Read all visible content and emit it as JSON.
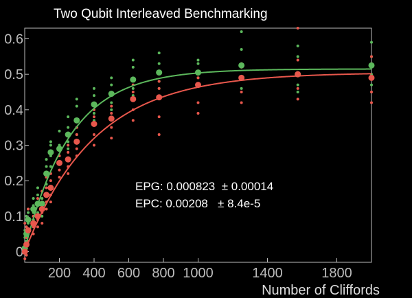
{
  "chart_data": {
    "type": "scatter",
    "title": "Two Qubit Interleaved Benchmarking",
    "xlabel": "Number of Cliffords",
    "ylabel": "",
    "xlim": [
      0,
      2000
    ],
    "ylim": [
      -0.03,
      0.63
    ],
    "x_ticks": [
      200,
      400,
      600,
      800,
      1000,
      1400,
      1800
    ],
    "x_tick_labels": [
      "200",
      "400",
      "600",
      "800",
      "1000",
      "1400",
      "1800"
    ],
    "y_ticks": [
      0,
      0.1,
      0.2,
      0.3,
      0.4,
      0.5,
      0.6
    ],
    "y_tick_labels": [
      "0",
      "0.1",
      "0.2",
      "0.3",
      "0.4",
      "0.5",
      "0.6"
    ],
    "grid": false,
    "annotations": [
      {
        "text": "EPG: 0.000823  ± 0.00014"
      },
      {
        "text": "EPC: 0.00208   ± 8.4e-5"
      }
    ],
    "series": [
      {
        "color": "#5cb85c",
        "x": [
          1,
          10,
          20,
          50,
          75,
          100,
          125,
          150,
          200,
          250,
          300,
          400,
          500,
          625,
          775,
          1000,
          1250,
          1575,
          2000
        ],
        "mean": [
          0.01,
          0.05,
          0.09,
          0.12,
          0.135,
          0.135,
          0.22,
          0.28,
          0.29,
          0.33,
          0.37,
          0.415,
          0.445,
          0.485,
          0.505,
          0.505,
          0.525,
          0.5,
          0.525
        ],
        "samples": [
          [
            0.02,
            0.0,
            0.04,
            0.06
          ],
          [
            0.03,
            0.07,
            0.1,
            0.04
          ],
          [
            0.06,
            0.12,
            0.08,
            0.11
          ],
          [
            0.09,
            0.15,
            0.11,
            0.13
          ],
          [
            0.11,
            0.18,
            0.13,
            0.16
          ],
          [
            0.1,
            0.17,
            0.15,
            0.12
          ],
          [
            0.19,
            0.24,
            0.21,
            0.26
          ],
          [
            0.24,
            0.31,
            0.27,
            0.3
          ],
          [
            0.25,
            0.34,
            0.3,
            0.27
          ],
          [
            0.29,
            0.38,
            0.35,
            0.31
          ],
          [
            0.33,
            0.43,
            0.41,
            0.35
          ],
          [
            0.37,
            0.46,
            0.44,
            0.39
          ],
          [
            0.4,
            0.49,
            0.47,
            0.42
          ],
          [
            0.44,
            0.54,
            0.52,
            0.46
          ],
          [
            0.46,
            0.56,
            0.53,
            0.48
          ],
          [
            0.47,
            0.54,
            0.53,
            0.49
          ],
          [
            0.46,
            0.62,
            0.57,
            0.49
          ],
          [
            0.45,
            0.58,
            0.55,
            0.47
          ],
          [
            0.47,
            0.59,
            0.55,
            0.5
          ]
        ],
        "fit": {
          "A": 0.515,
          "B": -0.51,
          "p": 0.9962
        }
      },
      {
        "color": "#e8574c",
        "x": [
          1,
          10,
          20,
          50,
          75,
          100,
          125,
          150,
          200,
          250,
          300,
          400,
          500,
          625,
          775,
          1000,
          1250,
          1575,
          2000
        ],
        "mean": [
          0.0,
          0.02,
          0.06,
          0.08,
          0.1,
          0.12,
          0.16,
          0.18,
          0.25,
          0.26,
          0.31,
          0.36,
          0.375,
          0.43,
          0.435,
          0.47,
          0.49,
          0.5,
          0.49
        ],
        "samples": [
          [
            -0.02,
            0.05,
            0.08,
            0.01
          ],
          [
            0.0,
            0.04,
            0.07,
            -0.01
          ],
          [
            0.03,
            0.09,
            0.12,
            0.05
          ],
          [
            0.05,
            0.12,
            0.1,
            0.07
          ],
          [
            0.07,
            0.15,
            0.13,
            0.09
          ],
          [
            0.08,
            0.17,
            0.14,
            0.11
          ],
          [
            0.12,
            0.21,
            0.18,
            0.14
          ],
          [
            0.14,
            0.22,
            0.2,
            0.16
          ],
          [
            0.21,
            0.29,
            0.27,
            0.23
          ],
          [
            0.22,
            0.3,
            0.28,
            0.24
          ],
          [
            0.27,
            0.35,
            0.33,
            0.29
          ],
          [
            0.3,
            0.4,
            0.38,
            0.33
          ],
          [
            0.32,
            0.41,
            0.39,
            0.35
          ],
          [
            0.37,
            0.47,
            0.45,
            0.4
          ],
          [
            0.33,
            0.46,
            0.48,
            0.38
          ],
          [
            0.39,
            0.5,
            0.49,
            0.42
          ],
          [
            0.42,
            0.53,
            0.52,
            0.45
          ],
          [
            0.43,
            0.63,
            0.54,
            0.46
          ],
          [
            0.42,
            0.55,
            0.53,
            0.45
          ]
        ],
        "fit": {
          "A": 0.505,
          "B": -0.505,
          "p": 0.9975
        }
      }
    ]
  }
}
